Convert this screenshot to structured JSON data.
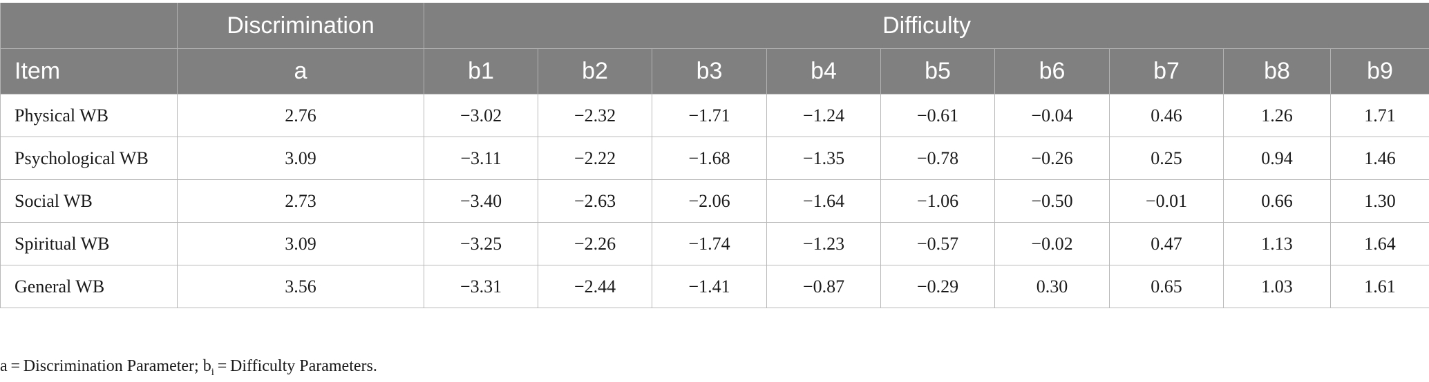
{
  "table": {
    "group_headers": {
      "blank": "",
      "discrimination": "Discrimination",
      "difficulty": "Difficulty"
    },
    "columns": [
      "Item",
      "a",
      "b1",
      "b2",
      "b3",
      "b4",
      "b5",
      "b6",
      "b7",
      "b8",
      "b9"
    ],
    "rows": [
      [
        "Physical WB",
        "2.76",
        "−3.02",
        "−2.32",
        "−1.71",
        "−1.24",
        "−0.61",
        "−0.04",
        "0.46",
        "1.26",
        "1.71"
      ],
      [
        "Psychological WB",
        "3.09",
        "−3.11",
        "−2.22",
        "−1.68",
        "−1.35",
        "−0.78",
        "−0.26",
        "0.25",
        "0.94",
        "1.46"
      ],
      [
        "Social WB",
        "2.73",
        "−3.40",
        "−2.63",
        "−2.06",
        "−1.64",
        "−1.06",
        "−0.50",
        "−0.01",
        "0.66",
        "1.30"
      ],
      [
        "Spiritual WB",
        "3.09",
        "−3.25",
        "−2.26",
        "−1.74",
        "−1.23",
        "−0.57",
        "−0.02",
        "0.47",
        "1.13",
        "1.64"
      ],
      [
        "General WB",
        "3.56",
        "−3.31",
        "−2.44",
        "−1.41",
        "−0.87",
        "−0.29",
        "0.30",
        "0.65",
        "1.03",
        "1.61"
      ]
    ]
  },
  "footnote": {
    "part1": "a = Discrimination Parameter; b",
    "subscript": "i",
    "part2": " = Difficulty Parameters."
  },
  "colors": {
    "header_bg": "#808080",
    "header_text": "#ffffff",
    "grid": "#b8b8b8"
  }
}
